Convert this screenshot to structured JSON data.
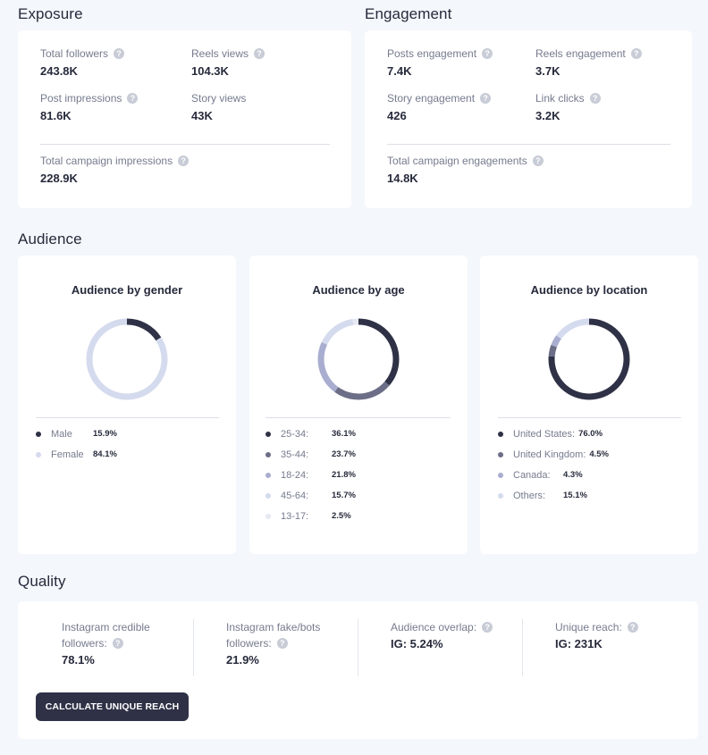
{
  "exposure": {
    "title": "Exposure",
    "metrics": [
      {
        "label": "Total followers",
        "value": "243.8K"
      },
      {
        "label": "Reels views",
        "value": "104.3K"
      },
      {
        "label": "Post impressions",
        "value": "81.6K"
      },
      {
        "label": "Story views",
        "value": "43K"
      }
    ],
    "total": {
      "label": "Total campaign impressions",
      "value": "228.9K"
    }
  },
  "engagement": {
    "title": "Engagement",
    "metrics": [
      {
        "label": "Posts engagement",
        "value": "7.4K"
      },
      {
        "label": "Reels engagement",
        "value": "3.7K"
      },
      {
        "label": "Story engagement",
        "value": "426"
      },
      {
        "label": "Link clicks",
        "value": "3.2K"
      }
    ],
    "total": {
      "label": "Total campaign engagements",
      "value": "14.8K"
    }
  },
  "audience": {
    "title": "Audience",
    "gender": {
      "title": "Audience by gender",
      "items": [
        {
          "label": "Male",
          "value": "15.9%",
          "pct": 15.9,
          "color": "#2f3146"
        },
        {
          "label": "Female",
          "value": "84.1%",
          "pct": 84.1,
          "color": "#d5dbee"
        }
      ]
    },
    "age": {
      "title": "Audience by age",
      "items": [
        {
          "label": "25-34:",
          "value": "36.1%",
          "pct": 36.1,
          "color": "#2f3146"
        },
        {
          "label": "35-44:",
          "value": "23.7%",
          "pct": 23.7,
          "color": "#6b6e86"
        },
        {
          "label": "18-24:",
          "value": "21.8%",
          "pct": 21.8,
          "color": "#a9adcf"
        },
        {
          "label": "45-64:",
          "value": "15.7%",
          "pct": 15.7,
          "color": "#d5dbee"
        },
        {
          "label": "13-17:",
          "value": "2.5%",
          "pct": 2.5,
          "color": "#e6e9f3"
        }
      ]
    },
    "location": {
      "title": "Audience by location",
      "items": [
        {
          "label": "United States:",
          "value": "76.0%",
          "pct": 76.0,
          "color": "#2f3146"
        },
        {
          "label": "United Kingdom:",
          "value": "4.5%",
          "pct": 4.5,
          "color": "#6b6e86"
        },
        {
          "label": "Canada:",
          "value": "4.3%",
          "pct": 4.3,
          "color": "#a9adcf"
        },
        {
          "label": "Others:",
          "value": "15.1%",
          "pct": 15.1,
          "color": "#d5dbee"
        }
      ]
    }
  },
  "quality": {
    "title": "Quality",
    "credible": {
      "label_line1": "Instagram credible",
      "label_line2": "followers:",
      "value": "78.1%"
    },
    "fake": {
      "label_line1": "Instagram fake/bots",
      "label_line2": "followers:",
      "value": "21.9%"
    },
    "overlap": {
      "label": "Audience overlap:",
      "value": "IG: 5.24%"
    },
    "reach": {
      "label": "Unique reach:",
      "value": "IG: 231K"
    },
    "button_label": "CALCULATE UNIQUE REACH"
  },
  "icons": {
    "help": "question-mark-icon",
    "help_glyph": "?"
  }
}
